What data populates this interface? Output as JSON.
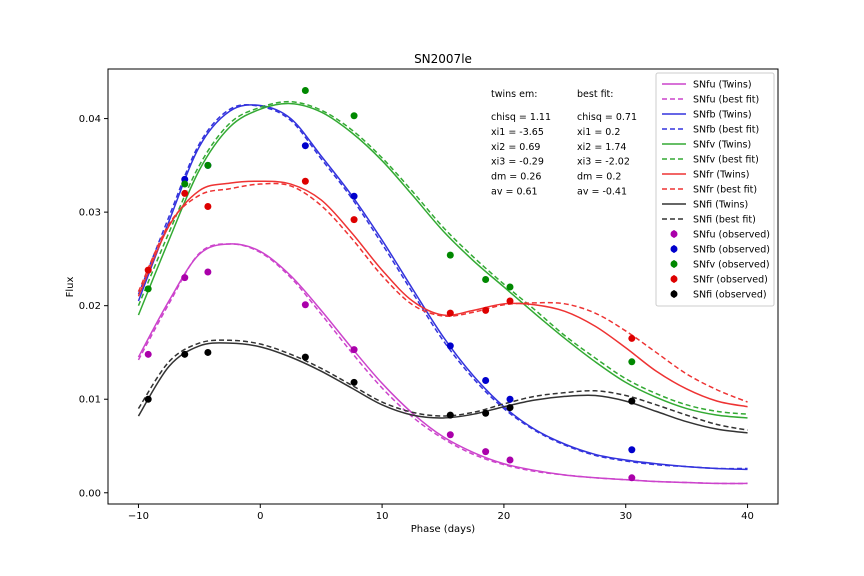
{
  "chart_data": {
    "type": "line",
    "title": "SN2007le",
    "xlabel": "Phase (days)",
    "ylabel": "Flux",
    "xlim": [
      -12.5,
      42.5
    ],
    "ylim": [
      -0.0012,
      0.0453
    ],
    "xticks": [
      -10,
      0,
      10,
      20,
      30,
      40
    ],
    "xtick_labels": [
      "−10",
      "0",
      "10",
      "20",
      "30",
      "40"
    ],
    "yticks": [
      0.0,
      0.01,
      0.02,
      0.03,
      0.04
    ],
    "ytick_labels": [
      "0.00",
      "0.01",
      "0.02",
      "0.03",
      "0.04"
    ],
    "grid": false,
    "legend_position": "top-right",
    "annotations": {
      "twins": {
        "header": "twins em:",
        "lines": [
          "chisq = 1.11",
          "xi1 = -3.65",
          "xi2 = 0.69",
          "xi3 = -0.29",
          "dm = 0.26",
          "av = 0.61"
        ]
      },
      "best": {
        "header": "best fit:",
        "lines": [
          "chisq = 0.71",
          "xi1 = 0.2",
          "xi2 = 1.74",
          "xi3 = -2.02",
          "dm = 0.2",
          "av = -0.41"
        ]
      }
    },
    "x": [
      -10,
      -7.5,
      -5,
      -2.5,
      0,
      2.5,
      5,
      7.5,
      10,
      12.5,
      15,
      17.5,
      20,
      22.5,
      25,
      27.5,
      30,
      32.5,
      35,
      37.5,
      40
    ],
    "series": [
      {
        "name": "SNfu (Twins)",
        "color": "#cc44cc",
        "dash": false,
        "values": [
          0.0145,
          0.0205,
          0.0255,
          0.0266,
          0.0258,
          0.0232,
          0.0195,
          0.0155,
          0.0117,
          0.0085,
          0.006,
          0.0043,
          0.0031,
          0.0024,
          0.0019,
          0.0016,
          0.0014,
          0.0012,
          0.0011,
          0.001,
          0.001
        ]
      },
      {
        "name": "SNfu (best fit)",
        "color": "#cc44cc",
        "dash": true,
        "values": [
          0.0142,
          0.0202,
          0.0256,
          0.0266,
          0.0257,
          0.023,
          0.0191,
          0.015,
          0.0112,
          0.0081,
          0.0058,
          0.0041,
          0.003,
          0.0023,
          0.0019,
          0.0016,
          0.0014,
          0.0012,
          0.0011,
          0.001,
          0.001
        ]
      },
      {
        "name": "SNfb (Twins)",
        "color": "#3333dd",
        "dash": false,
        "values": [
          0.0205,
          0.029,
          0.037,
          0.0408,
          0.0414,
          0.04,
          0.036,
          0.0318,
          0.027,
          0.0218,
          0.0167,
          0.0125,
          0.0092,
          0.0068,
          0.0052,
          0.0041,
          0.0035,
          0.0031,
          0.0028,
          0.0026,
          0.0025
        ]
      },
      {
        "name": "SNfb (best fit)",
        "color": "#3333dd",
        "dash": true,
        "values": [
          0.0212,
          0.0295,
          0.0373,
          0.041,
          0.0413,
          0.0398,
          0.0357,
          0.0315,
          0.0266,
          0.0214,
          0.0163,
          0.0122,
          0.009,
          0.0067,
          0.0051,
          0.004,
          0.0034,
          0.003,
          0.0028,
          0.0026,
          0.0026
        ]
      },
      {
        "name": "SNfv (Twins)",
        "color": "#33aa33",
        "dash": false,
        "values": [
          0.019,
          0.027,
          0.0345,
          0.0391,
          0.041,
          0.0416,
          0.0407,
          0.0385,
          0.0355,
          0.0318,
          0.028,
          0.0248,
          0.022,
          0.0192,
          0.0165,
          0.014,
          0.0118,
          0.0102,
          0.009,
          0.0083,
          0.008
        ]
      },
      {
        "name": "SNfv (best fit)",
        "color": "#33aa33",
        "dash": true,
        "values": [
          0.02,
          0.0278,
          0.035,
          0.0395,
          0.0412,
          0.0418,
          0.0409,
          0.0388,
          0.0358,
          0.0322,
          0.0284,
          0.0252,
          0.0223,
          0.0196,
          0.0168,
          0.0144,
          0.0122,
          0.0106,
          0.0094,
          0.0087,
          0.0084
        ]
      },
      {
        "name": "SNfr (Twins)",
        "color": "#ee3333",
        "dash": false,
        "values": [
          0.021,
          0.0285,
          0.0323,
          0.0331,
          0.0333,
          0.033,
          0.0313,
          0.0278,
          0.0238,
          0.0205,
          0.019,
          0.0195,
          0.0202,
          0.0201,
          0.0194,
          0.0178,
          0.0155,
          0.013,
          0.0111,
          0.0098,
          0.0092
        ]
      },
      {
        "name": "SNfr (best fit)",
        "color": "#ee3333",
        "dash": true,
        "values": [
          0.0215,
          0.0287,
          0.0318,
          0.0325,
          0.033,
          0.0328,
          0.0307,
          0.0272,
          0.0232,
          0.0201,
          0.0189,
          0.0193,
          0.0201,
          0.0203,
          0.0202,
          0.0192,
          0.0173,
          0.015,
          0.0127,
          0.011,
          0.0097
        ]
      },
      {
        "name": "SNfi (Twins)",
        "color": "#333333",
        "dash": false,
        "values": [
          0.0082,
          0.0135,
          0.0157,
          0.016,
          0.0156,
          0.0145,
          0.013,
          0.0112,
          0.0094,
          0.0083,
          0.008,
          0.0084,
          0.0092,
          0.0099,
          0.0103,
          0.0104,
          0.0098,
          0.0087,
          0.0076,
          0.0068,
          0.0064
        ]
      },
      {
        "name": "SNfi (best fit)",
        "color": "#333333",
        "dash": true,
        "values": [
          0.009,
          0.014,
          0.016,
          0.0163,
          0.0159,
          0.0148,
          0.0133,
          0.0115,
          0.0097,
          0.0086,
          0.0082,
          0.0086,
          0.0095,
          0.0103,
          0.0107,
          0.0109,
          0.0104,
          0.0094,
          0.0083,
          0.0073,
          0.0067
        ]
      }
    ],
    "observed": [
      {
        "name": "SNfu (observed)",
        "color": "#aa00aa",
        "points": [
          [
            -9.2,
            0.0148
          ],
          [
            -6.2,
            0.023
          ],
          [
            -4.3,
            0.0236
          ],
          [
            3.7,
            0.0201
          ],
          [
            7.7,
            0.0153
          ],
          [
            15.6,
            0.0062
          ],
          [
            18.5,
            0.0044
          ],
          [
            20.5,
            0.0035
          ],
          [
            30.5,
            0.0016
          ]
        ]
      },
      {
        "name": "SNfb (observed)",
        "color": "#0000cc",
        "points": [
          [
            -6.2,
            0.0335
          ],
          [
            -4.3,
            0.035
          ],
          [
            3.7,
            0.0371
          ],
          [
            7.7,
            0.0317
          ],
          [
            15.6,
            0.0157
          ],
          [
            18.5,
            0.012
          ],
          [
            20.5,
            0.01
          ],
          [
            30.5,
            0.0046
          ]
        ]
      },
      {
        "name": "SNfv (observed)",
        "color": "#008800",
        "points": [
          [
            -9.2,
            0.0218
          ],
          [
            -6.2,
            0.033
          ],
          [
            -4.3,
            0.035
          ],
          [
            3.7,
            0.043
          ],
          [
            7.7,
            0.0403
          ],
          [
            15.6,
            0.0254
          ],
          [
            18.5,
            0.0228
          ],
          [
            20.5,
            0.022
          ],
          [
            30.5,
            0.014
          ]
        ]
      },
      {
        "name": "SNfr (observed)",
        "color": "#dd0000",
        "points": [
          [
            -9.2,
            0.0238
          ],
          [
            -6.2,
            0.032
          ],
          [
            -4.3,
            0.0306
          ],
          [
            3.7,
            0.0333
          ],
          [
            7.7,
            0.0292
          ],
          [
            15.6,
            0.0192
          ],
          [
            18.5,
            0.0195
          ],
          [
            20.5,
            0.0205
          ],
          [
            30.5,
            0.0165
          ]
        ]
      },
      {
        "name": "SNfi (observed)",
        "color": "#000000",
        "points": [
          [
            -9.2,
            0.01
          ],
          [
            -6.2,
            0.0148
          ],
          [
            -4.3,
            0.015
          ],
          [
            3.7,
            0.0145
          ],
          [
            7.7,
            0.0118
          ],
          [
            15.6,
            0.0083
          ],
          [
            18.5,
            0.0085
          ],
          [
            20.5,
            0.0091
          ],
          [
            30.5,
            0.0098
          ]
        ]
      }
    ]
  }
}
